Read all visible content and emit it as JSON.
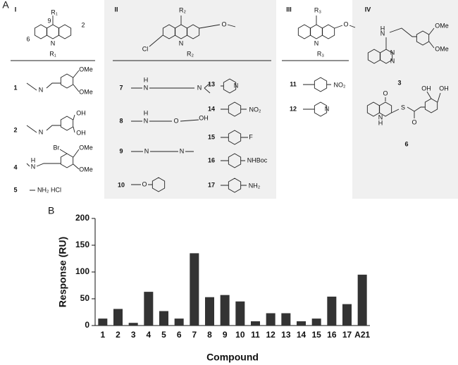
{
  "panel_a": {
    "label": "A",
    "sections": [
      {
        "numeral": "I",
        "core": [
          "R₁",
          "9",
          "2",
          "6",
          "N"
        ],
        "header": "R₁",
        "entries": [
          {
            "id": "1",
            "labels": [
              "OMe",
              "OMe",
              "N"
            ]
          },
          {
            "id": "2",
            "labels": [
              "OH",
              "OH",
              "N"
            ]
          },
          {
            "id": "4",
            "labels": [
              "Br",
              "OMe",
              "OMe",
              "H",
              "N"
            ]
          },
          {
            "id": "5",
            "labels": [
              "NH₂ HCl"
            ]
          }
        ]
      },
      {
        "numeral": "II",
        "core": [
          "R₂",
          "Cl",
          "N",
          "O"
        ],
        "header": "R₂",
        "entries": [
          {
            "id": "7",
            "labels": [
              "H",
              "N",
              "N"
            ]
          },
          {
            "id": "8",
            "labels": [
              "H",
              "N",
              "O",
              "OH"
            ]
          },
          {
            "id": "9",
            "labels": [
              "N",
              "N"
            ]
          },
          {
            "id": "10",
            "labels": [
              "O"
            ]
          },
          {
            "id": "13",
            "labels": [
              "N"
            ]
          },
          {
            "id": "14",
            "labels": [
              "NO₂"
            ]
          },
          {
            "id": "15",
            "labels": [
              "F"
            ]
          },
          {
            "id": "16",
            "labels": [
              "NHBoc"
            ]
          },
          {
            "id": "17",
            "labels": [
              "NH₂"
            ]
          }
        ]
      },
      {
        "numeral": "III",
        "core": [
          "R₃",
          "N",
          "O"
        ],
        "header": "R₃",
        "entries": [
          {
            "id": "11",
            "labels": [
              "NO₂"
            ]
          },
          {
            "id": "12",
            "labels": [
              "N"
            ]
          }
        ]
      },
      {
        "numeral": "IV",
        "entries": [
          {
            "id": "3",
            "labels": [
              "H",
              "N",
              "OMe",
              "OMe",
              "N",
              "N"
            ]
          },
          {
            "id": "6",
            "labels": [
              "O",
              "OH",
              "OH",
              "N",
              "H",
              "S",
              "O"
            ]
          }
        ]
      }
    ]
  },
  "chart_data": {
    "type": "bar",
    "panel_label": "B",
    "x_label": "Compound",
    "y_label": "Response (RU)",
    "categories": [
      "1",
      "2",
      "3",
      "4",
      "5",
      "6",
      "7",
      "8",
      "9",
      "10",
      "11",
      "12",
      "13",
      "14",
      "15",
      "16",
      "17",
      "A21"
    ],
    "values": [
      13,
      31,
      5,
      63,
      27,
      13,
      135,
      53,
      57,
      45,
      8,
      23,
      23,
      8,
      13,
      54,
      40,
      95
    ],
    "color": "#333333",
    "ylim": [
      0,
      200
    ],
    "yticks": [
      0,
      50,
      100,
      150,
      200
    ]
  }
}
